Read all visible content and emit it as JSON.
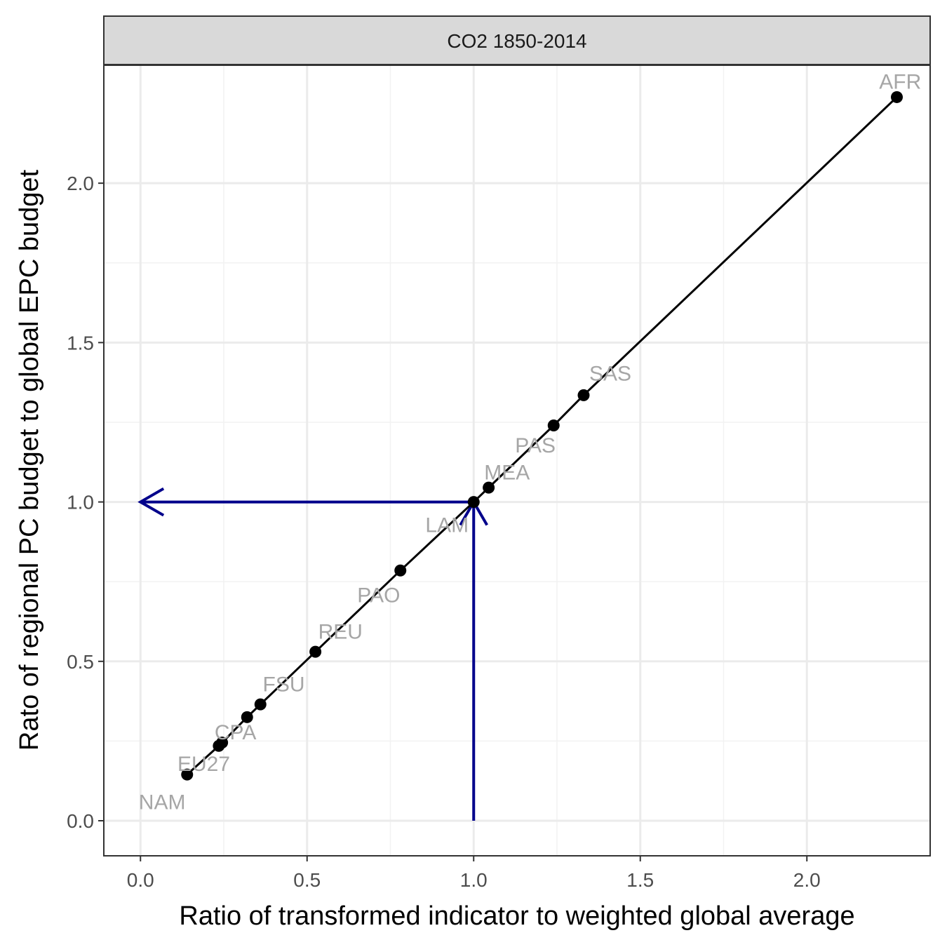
{
  "chart_data": {
    "type": "scatter",
    "facet_title": "CO2 1850-2014",
    "xlabel": "Ratio of transformed indicator to weighted global average",
    "ylabel": "Rato of regional PC budget to global EPC budget",
    "xlim": [
      -0.11,
      2.37
    ],
    "ylim": [
      -0.11,
      2.37
    ],
    "x_ticks": [
      0.0,
      0.5,
      1.0,
      1.5,
      2.0
    ],
    "x_tick_labels": [
      "0.0",
      "0.5",
      "1.0",
      "1.5",
      "2.0"
    ],
    "y_ticks": [
      0.0,
      0.5,
      1.0,
      1.5,
      2.0
    ],
    "y_tick_labels": [
      "0.0",
      "0.5",
      "1.0",
      "1.5",
      "2.0"
    ],
    "grid": true,
    "line": true,
    "series": [
      {
        "points": [
          {
            "x": 0.14,
            "y": 0.145
          },
          {
            "x": 0.235,
            "y": 0.235
          },
          {
            "x": 0.245,
            "y": 0.245
          },
          {
            "x": 0.32,
            "y": 0.325
          },
          {
            "x": 0.36,
            "y": 0.365
          },
          {
            "x": 0.525,
            "y": 0.53
          },
          {
            "x": 0.78,
            "y": 0.785
          },
          {
            "x": 1.0,
            "y": 1.0
          },
          {
            "x": 1.045,
            "y": 1.045
          },
          {
            "x": 1.24,
            "y": 1.24
          },
          {
            "x": 1.33,
            "y": 1.335
          },
          {
            "x": 2.27,
            "y": 2.27
          }
        ]
      }
    ],
    "point_labels": [
      {
        "text": "NAM",
        "x": 0.065,
        "y": 0.06
      },
      {
        "text": "EU27",
        "x": 0.19,
        "y": 0.18
      },
      {
        "text": "CPA",
        "x": 0.285,
        "y": 0.28
      },
      {
        "text": "FSU",
        "x": 0.43,
        "y": 0.43
      },
      {
        "text": "REU",
        "x": 0.6,
        "y": 0.595
      },
      {
        "text": "PAO",
        "x": 0.715,
        "y": 0.71
      },
      {
        "text": "LAM",
        "x": 0.92,
        "y": 0.93
      },
      {
        "text": "MEA",
        "x": 1.1,
        "y": 1.095
      },
      {
        "text": "PAS",
        "x": 1.185,
        "y": 1.18
      },
      {
        "text": "SAS",
        "x": 1.41,
        "y": 1.405
      },
      {
        "text": "AFR",
        "x": 2.28,
        "y": 2.32
      }
    ],
    "arrows": [
      {
        "from": [
          1.0,
          0.0
        ],
        "to": [
          1.0,
          1.0
        ]
      },
      {
        "from": [
          1.0,
          1.0
        ],
        "to": [
          0.0,
          1.0
        ]
      }
    ],
    "colors": {
      "points": "#000000",
      "line": "#000000",
      "arrows": "#00008b",
      "labels": "#a6a6a6",
      "grid_major": "#ebebeb",
      "grid_minor": "#f2f2f2",
      "strip_fill": "#d9d9d9",
      "panel_border": "#333333"
    }
  }
}
